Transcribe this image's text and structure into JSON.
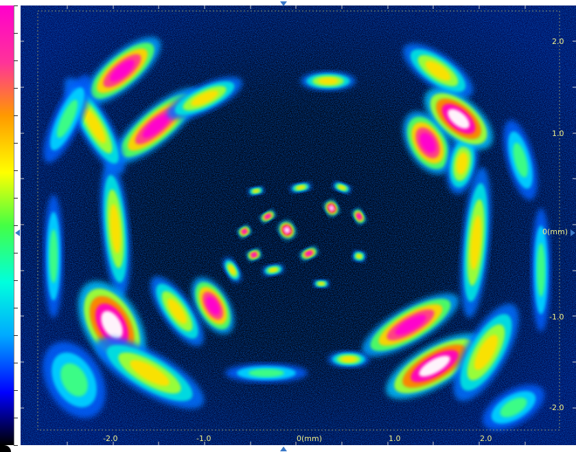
{
  "colors": {
    "background": "#000000",
    "axis_label": "#f2f28a",
    "frame_dotted": "#c8c864",
    "marker": "#3a78c8",
    "colormap": [
      "#000000",
      "#0000ff",
      "#00aaff",
      "#00ffdd",
      "#44ff44",
      "#ffff00",
      "#ff9900",
      "#ff3399",
      "#ff00cc"
    ]
  },
  "axis": {
    "x_ticks": [
      "-2.0",
      "-1.0",
      "0(mm)",
      "1.0",
      "2.0"
    ],
    "y_ticks": [
      "2.0",
      "1.0",
      "0(mm)",
      "-1.0",
      "-2.0"
    ]
  },
  "icons": {
    "cursor_markers": "triangle-marker-icon"
  }
}
